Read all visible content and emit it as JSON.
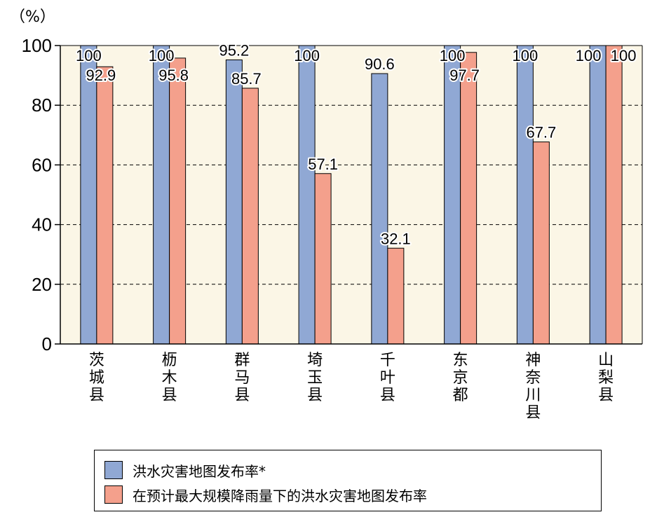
{
  "chart_data": {
    "type": "bar",
    "unit_label": "（%）",
    "categories": [
      "茨城県",
      "栃木県",
      "群马県",
      "埼玉県",
      "千叶県",
      "东京都",
      "神奈川県",
      "山梨県"
    ],
    "category_lines": [
      [
        "茨",
        "城",
        "县"
      ],
      [
        "枥",
        "木",
        "县"
      ],
      [
        "群",
        "马",
        "县"
      ],
      [
        "埼",
        "玉",
        "县"
      ],
      [
        "千",
        "叶",
        "县"
      ],
      [
        "东",
        "京",
        "都"
      ],
      [
        "神",
        "奈",
        "川",
        "县"
      ],
      [
        "山",
        "梨",
        "县"
      ]
    ],
    "series": [
      {
        "name": "洪水灾害地图发布率*",
        "color": "#90a8d4",
        "values": [
          100,
          100,
          95.2,
          100,
          90.6,
          100,
          100,
          100
        ],
        "labels": [
          "100",
          "100",
          "95.2",
          "100",
          "90.6",
          "100",
          "100",
          "100"
        ]
      },
      {
        "name": "在预计最大规模降雨量下的洪水灾害地图发布率",
        "color": "#f4a08c",
        "values": [
          92.9,
          95.8,
          85.7,
          57.1,
          32.1,
          97.7,
          67.7,
          100
        ],
        "labels": [
          "92.9",
          "95.8",
          "85.7",
          "57.1",
          "32.1",
          "97.7",
          "67.7",
          "100"
        ]
      }
    ],
    "ylim": [
      0,
      100
    ],
    "yticks": [
      "0",
      "20",
      "40",
      "60",
      "80",
      "100"
    ],
    "grid": true,
    "plot_background": "#fbf6e6",
    "legend_position": "bottom"
  }
}
